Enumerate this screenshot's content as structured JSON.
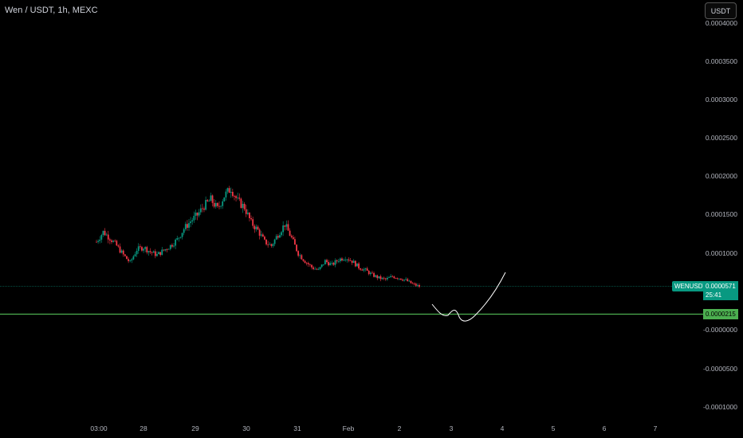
{
  "header": {
    "title": "Wen / USDT, 1h, MEXC",
    "currency_button": "USDT"
  },
  "y_axis": {
    "ticks": [
      "0.0004000",
      "0.0003500",
      "0.0003000",
      "0.0002500",
      "0.0002000",
      "0.0001500",
      "0.0001000",
      "-0.0000000",
      "-0.0000500",
      "-0.0001000"
    ]
  },
  "x_axis": {
    "ticks": [
      "03:00",
      "28",
      "29",
      "30",
      "31",
      "Feb",
      "2",
      "3",
      "4",
      "5",
      "6",
      "7"
    ]
  },
  "last_price": {
    "symbol": "WENUSDT",
    "value": "0.0000571",
    "countdown": "25:41"
  },
  "support_level": {
    "value": "0.0000215"
  },
  "colors": {
    "up": "#089981",
    "down": "#f23645",
    "support": "#4caf50",
    "price_line": "#089981",
    "drawing": "#ffffff"
  },
  "chart_data": {
    "type": "candlestick",
    "title": "Wen / USDT, 1h, MEXC",
    "ylim": [
      -0.0001,
      0.0004
    ],
    "support_price": 2.15e-05,
    "last_price": 5.71e-05,
    "close_path": [
      0.000115,
      0.000128,
      0.00012,
      0.00011,
      9.8e-05,
      8.8e-05,
      0.000105,
      0.000108,
      0.000102,
      9.8e-05,
      0.000104,
      0.00011,
      0.000118,
      0.000132,
      0.000142,
      0.00015,
      0.000162,
      0.00017,
      0.000158,
      0.000175,
      0.000185,
      0.000168,
      0.00016,
      0.00014,
      0.00013,
      0.000115,
      0.00011,
      0.000125,
      0.000138,
      0.00012,
      0.0001,
      9e-05,
      8.2e-05,
      7.8e-05,
      9e-05,
      8.5e-05,
      9.2e-05,
      9.5e-05,
      9e-05,
      8.2e-05,
      7.8e-05,
      7.2e-05,
      6.8e-05,
      6.6e-05,
      7e-05,
      6.8e-05,
      6.5e-05,
      6e-05,
      5.7e-05
    ],
    "projection": "drawn curve dipping to the support level around day 3 then rising sharply toward day 4"
  }
}
